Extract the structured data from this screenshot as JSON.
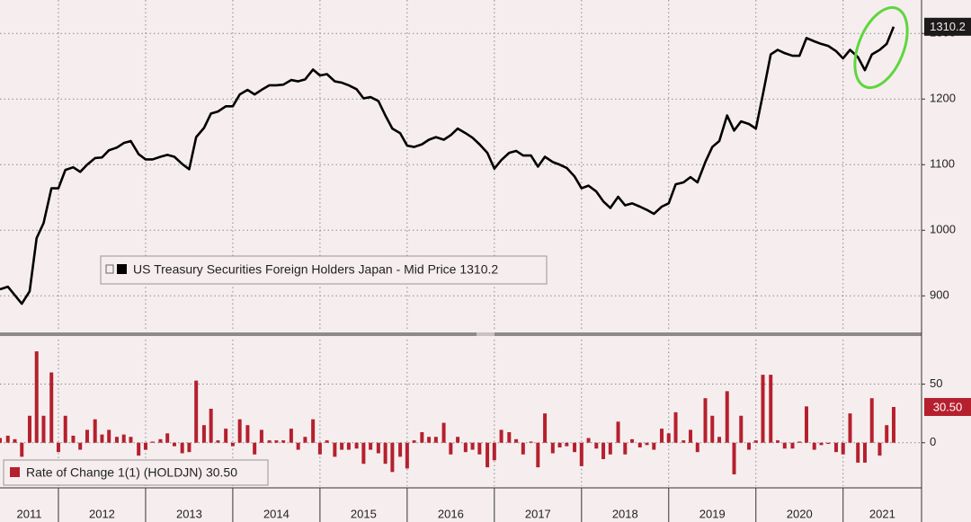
{
  "chart_data": {
    "type": "line",
    "x": [
      2011.33,
      2011.42,
      2011.5,
      2011.58,
      2011.67,
      2011.75,
      2011.83,
      2011.92,
      2012,
      2012.08,
      2012.17,
      2012.25,
      2012.33,
      2012.42,
      2012.5,
      2012.58,
      2012.67,
      2012.75,
      2012.83,
      2012.92,
      2013,
      2013.08,
      2013.17,
      2013.25,
      2013.33,
      2013.42,
      2013.5,
      2013.58,
      2013.67,
      2013.75,
      2013.83,
      2013.92,
      2014,
      2014.08,
      2014.17,
      2014.25,
      2014.33,
      2014.42,
      2014.5,
      2014.58,
      2014.67,
      2014.75,
      2014.83,
      2014.92,
      2015,
      2015.08,
      2015.17,
      2015.25,
      2015.33,
      2015.42,
      2015.5,
      2015.58,
      2015.67,
      2015.75,
      2015.83,
      2015.92,
      2016,
      2016.08,
      2016.17,
      2016.25,
      2016.33,
      2016.42,
      2016.5,
      2016.58,
      2016.67,
      2016.75,
      2016.83,
      2016.92,
      2017,
      2017.08,
      2017.17,
      2017.25,
      2017.33,
      2017.42,
      2017.5,
      2017.58,
      2017.67,
      2017.75,
      2017.83,
      2017.92,
      2018,
      2018.08,
      2018.17,
      2018.25,
      2018.33,
      2018.42,
      2018.5,
      2018.58,
      2018.67,
      2018.75,
      2018.83,
      2018.92,
      2019,
      2019.08,
      2019.17,
      2019.25,
      2019.33,
      2019.42,
      2019.5,
      2019.58,
      2019.67,
      2019.75,
      2019.83,
      2019.92,
      2020,
      2020.08,
      2020.17,
      2020.25,
      2020.33,
      2020.42,
      2020.5,
      2020.58,
      2020.67,
      2020.75,
      2020.83,
      2020.92,
      2021,
      2021.08,
      2021.17,
      2021.25,
      2021.33,
      2021.42,
      2021.5,
      2021.58
    ],
    "xlim": [
      2011.33,
      2021.9
    ],
    "xticks": [
      2011,
      2012,
      2013,
      2014,
      2015,
      2016,
      2017,
      2018,
      2019,
      2020,
      2021
    ],
    "ylim": [
      847,
      1351
    ],
    "yticks": [
      900,
      1000,
      1100,
      1200,
      1300
    ],
    "y2lim": [
      -37,
      88
    ],
    "y2ticks": [
      0,
      50
    ],
    "grid": true,
    "series": [
      {
        "name": "US Treasury Securities Foreign Holders Japan - Mid Price 1310.2",
        "color": "#000000",
        "end_label": "1310.2",
        "values": [
          910,
          914,
          901,
          888,
          907,
          988,
          1011,
          1064,
          1064,
          1092,
          1096,
          1089,
          1100,
          1110,
          1111,
          1122,
          1126,
          1133,
          1136,
          1116,
          1108,
          1108,
          1112,
          1115,
          1112,
          1101,
          1093,
          1142,
          1156,
          1178,
          1181,
          1189,
          1189,
          1207,
          1214,
          1207,
          1214,
          1221,
          1221,
          1222,
          1229,
          1227,
          1230,
          1245,
          1236,
          1238,
          1227,
          1225,
          1221,
          1215,
          1201,
          1203,
          1197,
          1175,
          1155,
          1148,
          1129,
          1127,
          1131,
          1138,
          1142,
          1138,
          1145,
          1155,
          1148,
          1141,
          1131,
          1118,
          1094,
          1107,
          1118,
          1121,
          1114,
          1114,
          1097,
          1112,
          1104,
          1100,
          1095,
          1082,
          1064,
          1068,
          1059,
          1044,
          1034,
          1051,
          1038,
          1041,
          1036,
          1031,
          1025,
          1036,
          1041,
          1070,
          1073,
          1081,
          1073,
          1104,
          1127,
          1136,
          1175,
          1152,
          1166,
          1162,
          1155,
          1207,
          1268,
          1275,
          1270,
          1266,
          1266,
          1293,
          1288,
          1284,
          1281,
          1273,
          1262,
          1275,
          1264,
          1244,
          1268,
          1275,
          1284,
          1310.2
        ]
      },
      {
        "name": "Rate of Change 1(1) (HOLDJN) 30.50",
        "color": "#b5202e",
        "type": "bar",
        "axis": "y2",
        "end_label": "30.50",
        "values": [
          4,
          6,
          3,
          -12,
          23,
          78,
          23,
          60,
          -8,
          23,
          6,
          -6,
          11,
          20,
          7,
          11,
          5,
          7,
          5,
          -11,
          -6,
          1,
          3,
          8,
          -3,
          -9,
          -8,
          53,
          15,
          29,
          2,
          12,
          -3,
          20,
          15,
          -10,
          11,
          2,
          2,
          2,
          12,
          -6,
          5,
          20,
          -10,
          2,
          -12,
          -6,
          -6,
          -5,
          -18,
          -6,
          -9,
          -18,
          -25,
          -12,
          -22,
          2,
          9,
          5,
          5,
          17,
          -10,
          5,
          -8,
          -6,
          -10,
          -21,
          -15,
          11,
          9,
          3,
          -10,
          1,
          -21,
          25,
          -9,
          -4,
          -3,
          -8,
          -20,
          4,
          -5,
          -14,
          -10,
          18,
          -10,
          3,
          -4,
          -2,
          -6,
          12,
          8,
          26,
          2,
          11,
          -8,
          38,
          23,
          5,
          44,
          -27,
          23,
          -6,
          2,
          58,
          58,
          2,
          -5,
          -5,
          1,
          31,
          -6,
          -2,
          -1,
          -8,
          -10,
          25,
          -17,
          -17,
          38,
          -11,
          15,
          30.5
        ]
      }
    ]
  }
}
